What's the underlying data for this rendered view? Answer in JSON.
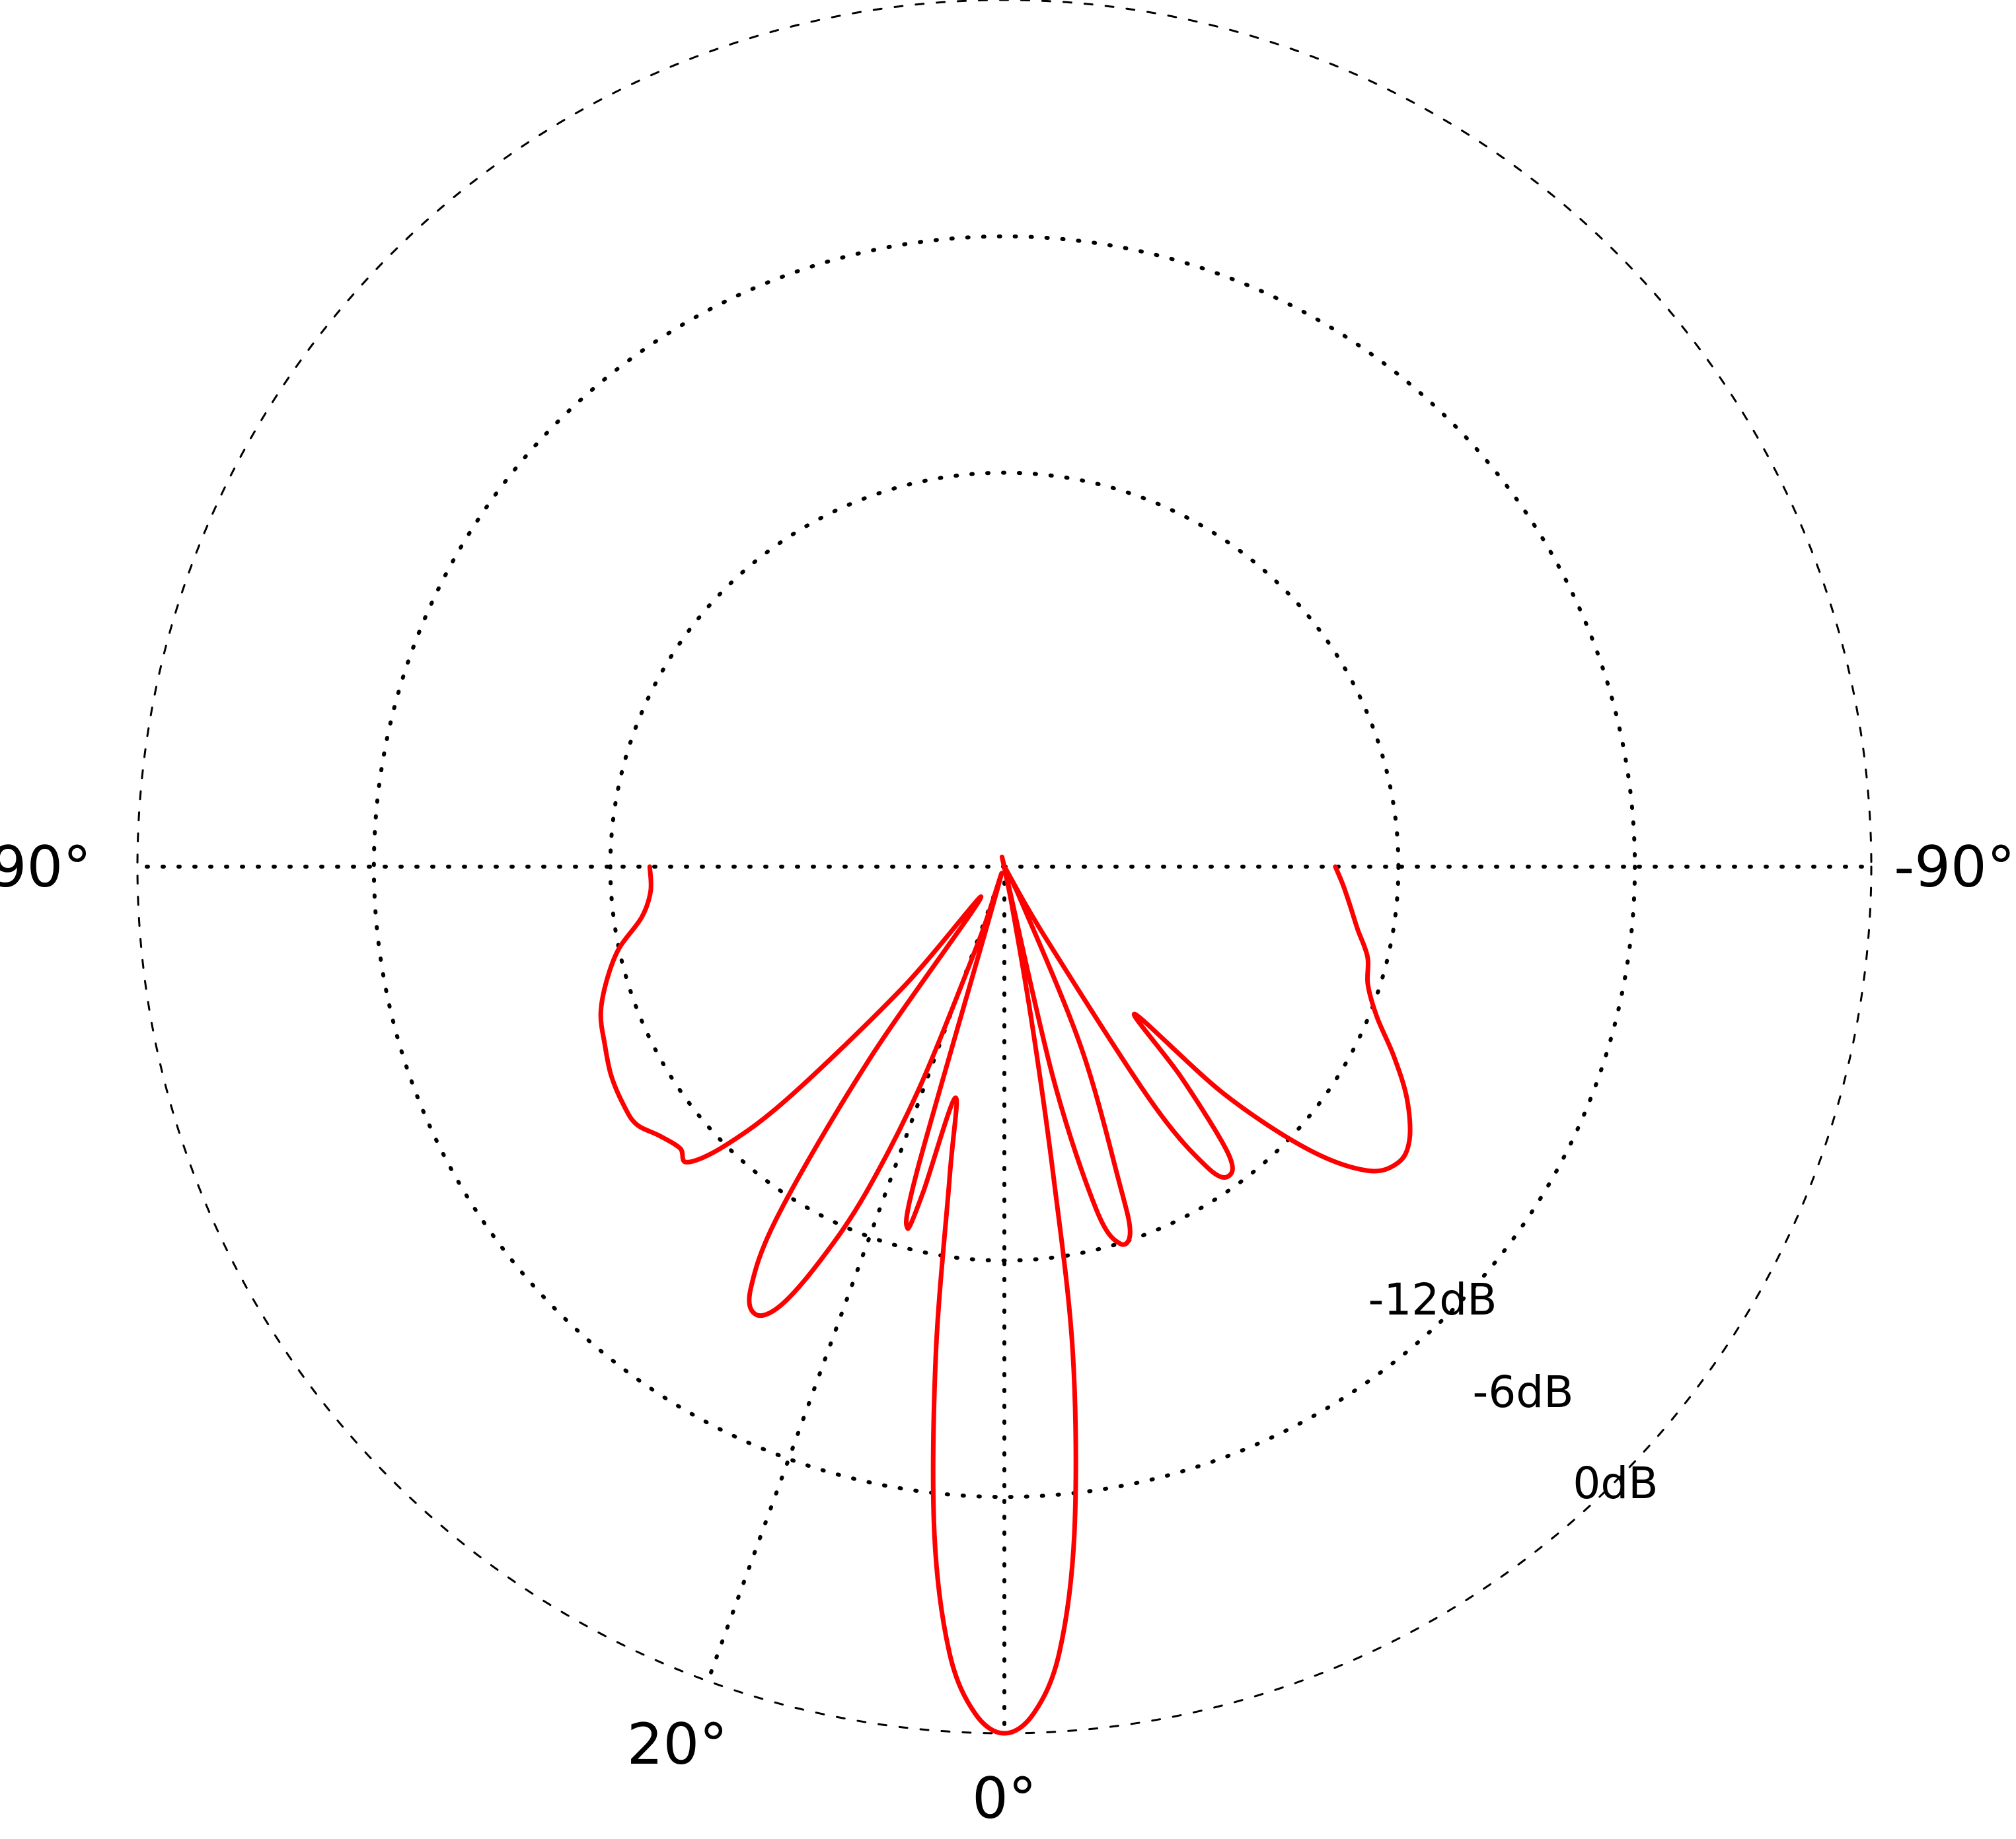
{
  "chart_data": {
    "type": "line",
    "coordinate_system": "polar",
    "angle_unit": "degrees",
    "radial_unit": "dB",
    "radial_range": [
      -22,
      0
    ],
    "angle_range": [
      -90,
      90
    ],
    "rings": [
      {
        "value": 0,
        "label": "0dB"
      },
      {
        "value": -6,
        "label": "-6dB"
      },
      {
        "value": -12,
        "label": "-12dB"
      }
    ],
    "angle_labels": [
      {
        "angle": 90,
        "label": "90°"
      },
      {
        "angle": 20,
        "label": "20°"
      },
      {
        "angle": 0,
        "label": "0°"
      },
      {
        "angle": -90,
        "label": "-90°"
      }
    ],
    "radial_lines": [
      90,
      20,
      0,
      -90
    ],
    "series": [
      {
        "color": "#ff0000",
        "points": [
          [
            90,
            -13.0
          ],
          [
            86,
            -13.0
          ],
          [
            82,
            -12.7
          ],
          [
            78,
            -12.0
          ],
          [
            74,
            -11.5
          ],
          [
            70,
            -11.1
          ],
          [
            66,
            -10.9
          ],
          [
            62,
            -10.7
          ],
          [
            58,
            -10.6
          ],
          [
            55,
            -10.6
          ],
          [
            52,
            -10.9
          ],
          [
            49,
            -11.1
          ],
          [
            47,
            -11.0
          ],
          [
            45,
            -12.0
          ],
          [
            43,
            -14.0
          ],
          [
            40,
            -18.0
          ],
          [
            37,
            -21.0
          ],
          [
            35,
            -16.0
          ],
          [
            33,
            -11.5
          ],
          [
            31,
            -9.5
          ],
          [
            29,
            -9.0
          ],
          [
            27,
            -9.5
          ],
          [
            25,
            -11.0
          ],
          [
            23,
            -13.0
          ],
          [
            21,
            -16.0
          ],
          [
            19,
            -20.0
          ],
          [
            17.5,
            -21.5
          ],
          [
            16,
            -14.0
          ],
          [
            15,
            -12.5
          ],
          [
            14,
            -13.5
          ],
          [
            12,
            -16.0
          ],
          [
            10,
            -14.0
          ],
          [
            8,
            -9.5
          ],
          [
            6,
            -5.0
          ],
          [
            4,
            -2.0
          ],
          [
            2,
            -0.5
          ],
          [
            0,
            0
          ],
          [
            -2,
            -0.5
          ],
          [
            -4,
            -2.0
          ],
          [
            -6,
            -5.0
          ],
          [
            -8,
            -9.5
          ],
          [
            -9,
            -14.0
          ],
          [
            -10,
            -18.0
          ],
          [
            -11,
            -21.0
          ],
          [
            -11.5,
            -22.0
          ],
          [
            -13,
            -16.5
          ],
          [
            -15,
            -13.0
          ],
          [
            -17,
            -12.0
          ],
          [
            -19,
            -12.2
          ],
          [
            -20,
            -13.5
          ],
          [
            -23,
            -17.0
          ],
          [
            -26,
            -21.0
          ],
          [
            -28,
            -22.0
          ],
          [
            -30,
            -20.0
          ],
          [
            -32,
            -15.0
          ],
          [
            -34,
            -12.8
          ],
          [
            -36,
            -12.3
          ],
          [
            -38,
            -12.8
          ],
          [
            -40,
            -15.0
          ],
          [
            -41.5,
            -17.0
          ],
          [
            -44,
            -14.0
          ],
          [
            -47,
            -11.5
          ],
          [
            -50,
            -10.0
          ],
          [
            -53,
            -9.5
          ],
          [
            -56,
            -9.6
          ],
          [
            -60,
            -10.2
          ],
          [
            -64,
            -11.0
          ],
          [
            -68,
            -11.8
          ],
          [
            -72,
            -12.3
          ],
          [
            -76,
            -12.5
          ],
          [
            -80,
            -12.9
          ],
          [
            -84,
            -13.2
          ],
          [
            -87,
            -13.4
          ],
          [
            -90,
            -13.6
          ]
        ]
      }
    ]
  }
}
